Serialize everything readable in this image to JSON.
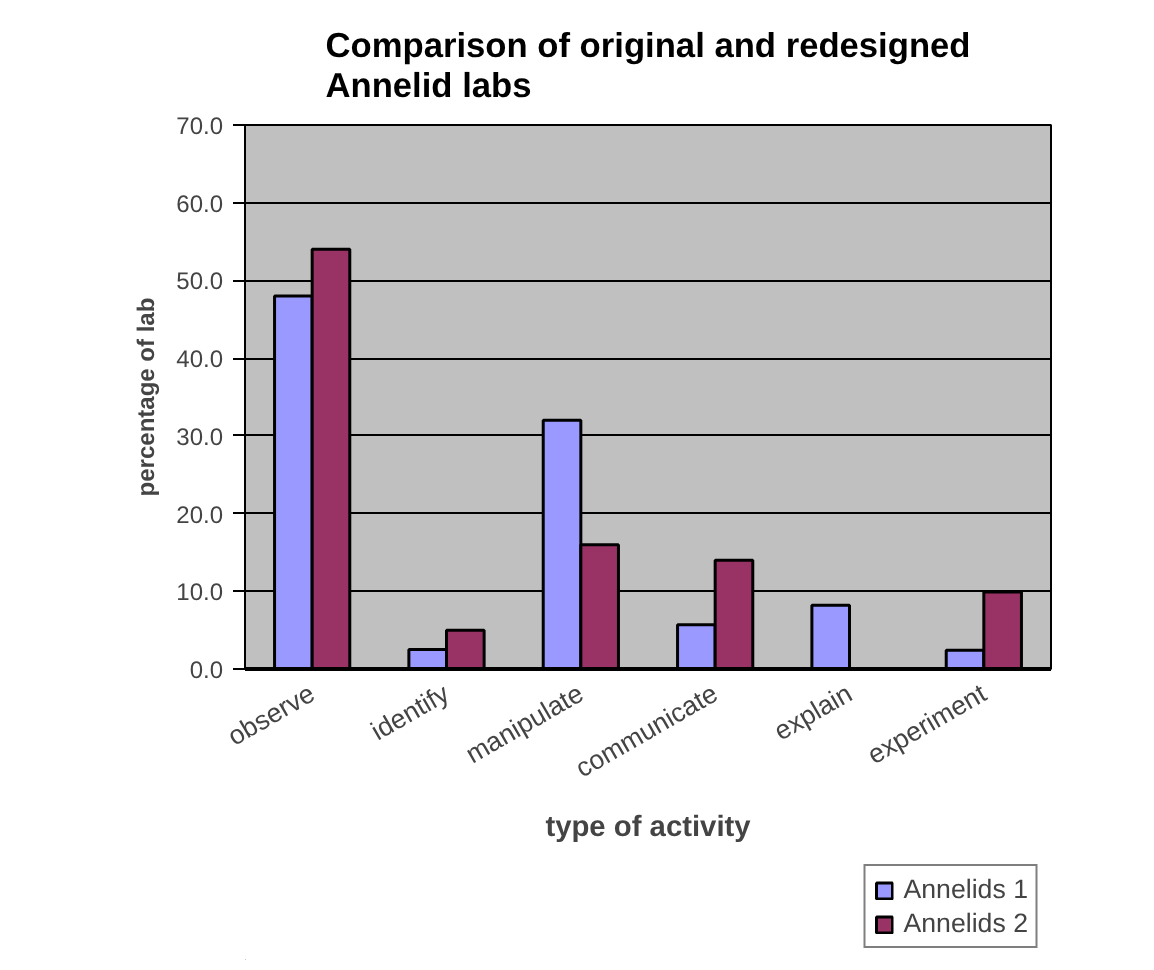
{
  "chart_data": {
    "type": "bar",
    "title": "Comparison of original and redesigned Annelid labs",
    "xlabel": "type of activity",
    "ylabel": "percentage of lab",
    "categories": [
      "observe",
      "identify",
      "manipulate",
      "communicate",
      "explain",
      "experiment"
    ],
    "series": [
      {
        "name": "Annelids 1",
        "color": "#9999ff",
        "values": [
          48.0,
          2.5,
          32.0,
          5.7,
          8.2,
          2.4
        ]
      },
      {
        "name": "Annelids 2",
        "color": "#993366",
        "values": [
          54.0,
          5.0,
          16.0,
          14.0,
          0.0,
          9.9
        ]
      }
    ],
    "ylim": [
      0,
      70
    ],
    "yticks": [
      {
        "value": 0,
        "label": "0.0"
      },
      {
        "value": 10,
        "label": "10.0"
      },
      {
        "value": 20,
        "label": "20.0"
      },
      {
        "value": 30,
        "label": "30.0"
      },
      {
        "value": 40,
        "label": "40.0"
      },
      {
        "value": 50,
        "label": "50.0"
      },
      {
        "value": 60,
        "label": "60.0"
      },
      {
        "value": 70,
        "label": "70.0"
      }
    ],
    "grid": "y",
    "legend": "bottom right"
  }
}
